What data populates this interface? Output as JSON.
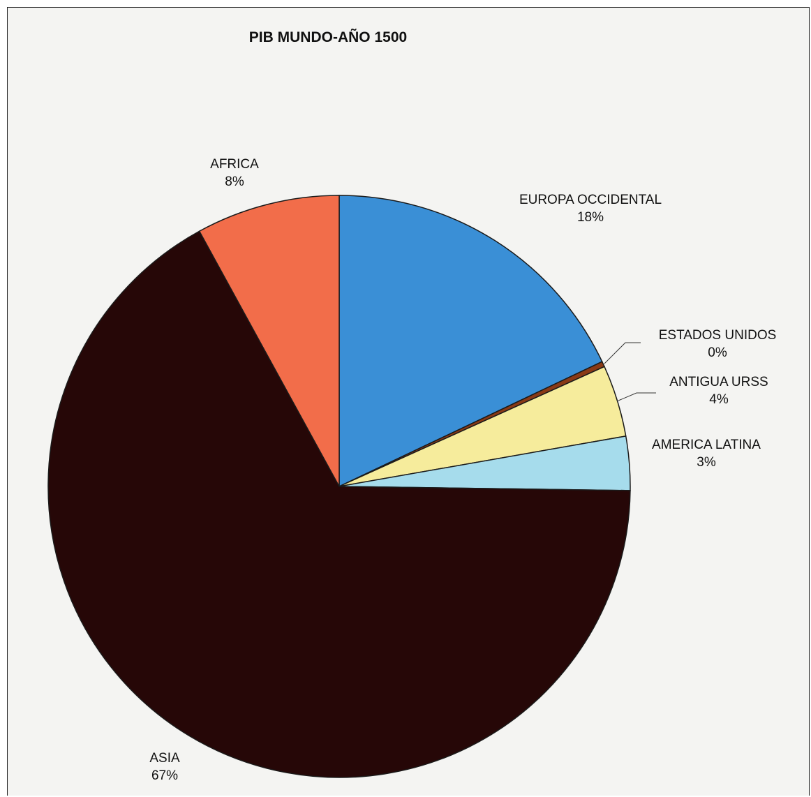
{
  "chart_data": {
    "type": "pie",
    "title": "PIB MUNDO-AÑO 1500",
    "slices": [
      {
        "label": "EUROPA OCCIDENTAL",
        "value": 18,
        "display": "18%",
        "color": "#3a8fd6"
      },
      {
        "label": "ESTADOS UNIDOS",
        "value": 0.3,
        "display": "0%",
        "color": "#8a3a16"
      },
      {
        "label": "ANTIGUA URSS",
        "value": 4,
        "display": "4%",
        "color": "#f6ec9c"
      },
      {
        "label": "AMERICA LATINA",
        "value": 3,
        "display": "3%",
        "color": "#a6dcec"
      },
      {
        "label": "ASIA",
        "value": 67,
        "display": "67%",
        "color": "#260707"
      },
      {
        "label": "AFRICA",
        "value": 8,
        "display": "8%",
        "color": "#f26d4a"
      }
    ],
    "start": "12 o'clock",
    "direction": "clockwise",
    "legend": "none",
    "data_labels": "category name and percentage"
  }
}
